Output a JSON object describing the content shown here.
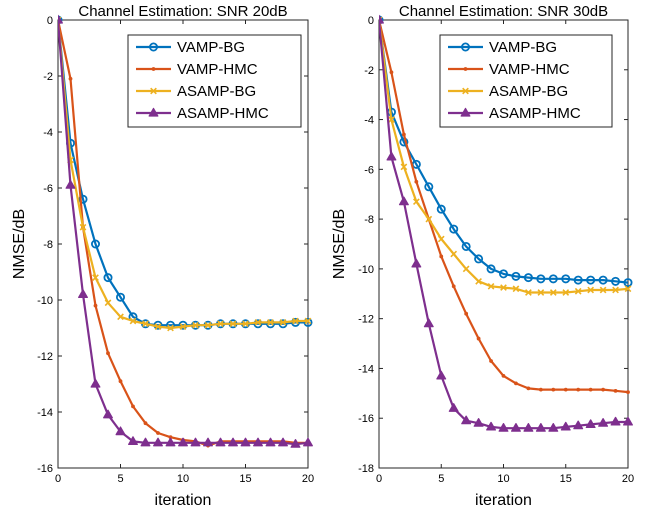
{
  "chart_data": [
    {
      "type": "line",
      "title": "Channel Estimation: SNR 20dB",
      "xlabel": "iteration",
      "ylabel": "NMSE/dB",
      "xlim": [
        0,
        20
      ],
      "ylim": [
        -16,
        0
      ],
      "xticks": [
        0,
        5,
        10,
        15,
        20
      ],
      "yticks": [
        0,
        -2,
        -4,
        -6,
        -8,
        -10,
        -12,
        -14,
        -16
      ],
      "grid": false,
      "legend_position": "top-right",
      "x": [
        0,
        1,
        2,
        3,
        4,
        5,
        6,
        7,
        8,
        9,
        10,
        11,
        12,
        13,
        14,
        15,
        16,
        17,
        18,
        19,
        20
      ],
      "series": [
        {
          "name": "VAMP-BG",
          "color": "#0072BD",
          "marker": "circle",
          "values": [
            0,
            -4.4,
            -6.4,
            -8.0,
            -9.2,
            -9.9,
            -10.6,
            -10.85,
            -10.9,
            -10.9,
            -10.9,
            -10.9,
            -10.9,
            -10.85,
            -10.85,
            -10.85,
            -10.85,
            -10.85,
            -10.85,
            -10.8,
            -10.8
          ]
        },
        {
          "name": "VAMP-HMC",
          "color": "#D95319",
          "marker": "dot",
          "values": [
            0,
            -2.1,
            -7.4,
            -10.2,
            -11.9,
            -12.9,
            -13.8,
            -14.4,
            -14.75,
            -14.9,
            -15.0,
            -15.05,
            -15.2,
            -15.05,
            -15.05,
            -15.05,
            -15.05,
            -15.05,
            -15.05,
            -15.1,
            -15.1
          ]
        },
        {
          "name": "ASAMP-BG",
          "color": "#EDB120",
          "marker": "x",
          "values": [
            0,
            -5.0,
            -7.4,
            -9.2,
            -10.1,
            -10.6,
            -10.75,
            -10.85,
            -10.95,
            -11.0,
            -10.95,
            -10.9,
            -10.9,
            -10.85,
            -10.85,
            -10.85,
            -10.8,
            -10.8,
            -10.8,
            -10.75,
            -10.75
          ]
        },
        {
          "name": "ASAMP-HMC",
          "color": "#7E2F8E",
          "marker": "triangle",
          "values": [
            0,
            -5.9,
            -9.8,
            -13.0,
            -14.1,
            -14.7,
            -15.05,
            -15.1,
            -15.1,
            -15.1,
            -15.1,
            -15.1,
            -15.1,
            -15.1,
            -15.1,
            -15.1,
            -15.1,
            -15.1,
            -15.1,
            -15.15,
            -15.1
          ]
        }
      ]
    },
    {
      "type": "line",
      "title": "Channel Estimation: SNR 30dB",
      "xlabel": "iteration",
      "ylabel": "NMSE/dB",
      "xlim": [
        0,
        20
      ],
      "ylim": [
        -18,
        0
      ],
      "xticks": [
        0,
        5,
        10,
        15,
        20
      ],
      "yticks": [
        0,
        -2,
        -4,
        -6,
        -8,
        -10,
        -12,
        -14,
        -16,
        -18
      ],
      "grid": false,
      "legend_position": "top-right",
      "x": [
        0,
        1,
        2,
        3,
        4,
        5,
        6,
        7,
        8,
        9,
        10,
        11,
        12,
        13,
        14,
        15,
        16,
        17,
        18,
        19,
        20
      ],
      "series": [
        {
          "name": "VAMP-BG",
          "color": "#0072BD",
          "marker": "circle",
          "values": [
            0,
            -3.7,
            -4.9,
            -5.8,
            -6.7,
            -7.6,
            -8.4,
            -9.1,
            -9.6,
            -10.0,
            -10.2,
            -10.3,
            -10.35,
            -10.4,
            -10.4,
            -10.4,
            -10.45,
            -10.45,
            -10.45,
            -10.5,
            -10.55
          ]
        },
        {
          "name": "VAMP-HMC",
          "color": "#D95319",
          "marker": "dot",
          "values": [
            0,
            -2.1,
            -4.6,
            -6.5,
            -8.0,
            -9.5,
            -10.7,
            -11.8,
            -12.8,
            -13.7,
            -14.3,
            -14.6,
            -14.8,
            -14.85,
            -14.85,
            -14.85,
            -14.85,
            -14.85,
            -14.85,
            -14.9,
            -14.95
          ]
        },
        {
          "name": "ASAMP-BG",
          "color": "#EDB120",
          "marker": "x",
          "values": [
            0,
            -4.0,
            -5.9,
            -7.3,
            -8.0,
            -8.8,
            -9.4,
            -10.0,
            -10.5,
            -10.7,
            -10.75,
            -10.8,
            -10.95,
            -10.95,
            -10.95,
            -10.95,
            -10.9,
            -10.85,
            -10.85,
            -10.85,
            -10.8
          ]
        },
        {
          "name": "ASAMP-HMC",
          "color": "#7E2F8E",
          "marker": "triangle",
          "values": [
            0,
            -5.5,
            -7.3,
            -9.8,
            -12.2,
            -14.3,
            -15.6,
            -16.1,
            -16.2,
            -16.35,
            -16.4,
            -16.4,
            -16.4,
            -16.4,
            -16.4,
            -16.35,
            -16.3,
            -16.25,
            -16.2,
            -16.15,
            -16.15
          ]
        }
      ]
    }
  ]
}
